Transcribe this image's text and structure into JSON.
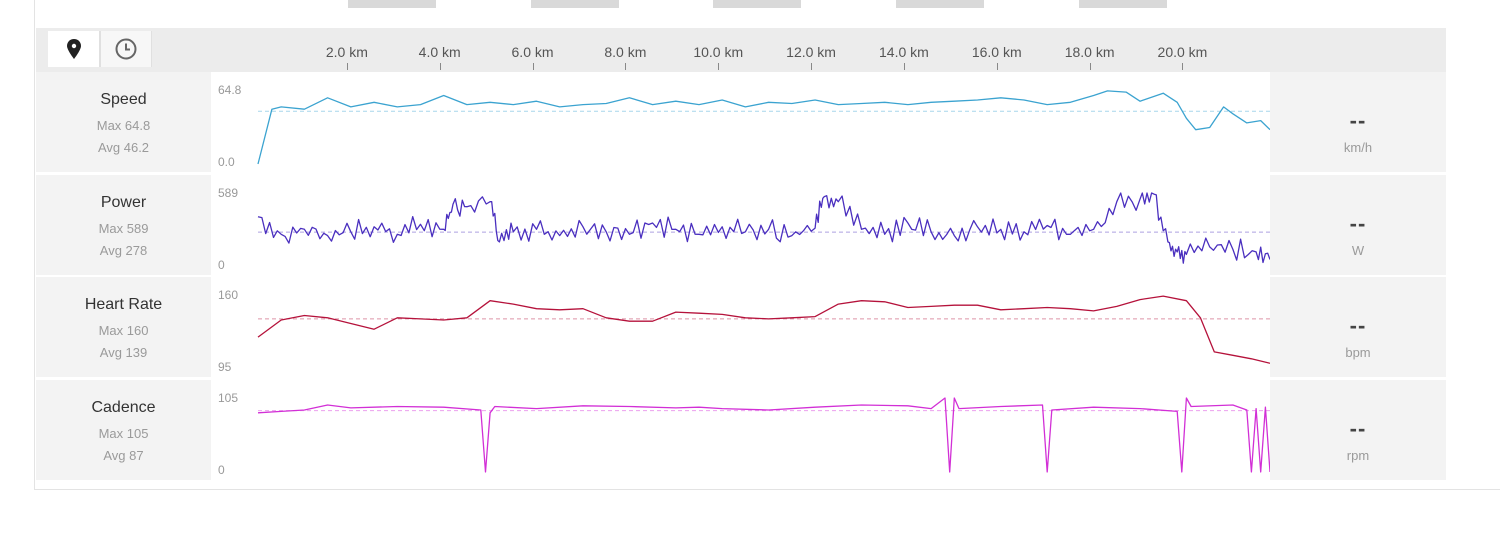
{
  "toolbar": {
    "map_icon": "map-pin-icon",
    "time_icon": "clock-icon"
  },
  "distance_axis": {
    "labels": [
      "2.0 km",
      "4.0 km",
      "6.0 km",
      "8.0 km",
      "10.0 km",
      "12.0 km",
      "14.0 km",
      "16.0 km",
      "18.0 km",
      "20.0 km"
    ]
  },
  "metrics": [
    {
      "name": "Speed",
      "max": "Max 64.8",
      "avg": "Avg 46.2",
      "current": "--",
      "unit": "km/h",
      "ymax_label": "64.8",
      "ymin_label": "0.0"
    },
    {
      "name": "Power",
      "max": "Max 589",
      "avg": "Avg 278",
      "current": "--",
      "unit": "W",
      "ymax_label": "589",
      "ymin_label": "0"
    },
    {
      "name": "Heart Rate",
      "max": "Max 160",
      "avg": "Avg 139",
      "current": "--",
      "unit": "bpm",
      "ymax_label": "160",
      "ymin_label": "95"
    },
    {
      "name": "Cadence",
      "max": "Max 105",
      "avg": "Avg 87",
      "current": "--",
      "unit": "rpm",
      "ymax_label": "105",
      "ymin_label": "0"
    }
  ],
  "chart_data": [
    {
      "type": "line",
      "title": "Speed",
      "color": "#3ba3d0",
      "xlabel": "km",
      "ylim": [
        0,
        64.8
      ],
      "average": 46.2,
      "x": [
        0.0,
        0.3,
        0.5,
        1.0,
        1.5,
        2.0,
        2.5,
        3.0,
        3.5,
        4.0,
        4.5,
        5.0,
        5.5,
        6.0,
        6.5,
        7.0,
        7.5,
        8.0,
        8.5,
        9.0,
        9.5,
        10.0,
        10.5,
        11.0,
        11.5,
        12.0,
        12.5,
        13.0,
        13.5,
        14.0,
        14.5,
        15.0,
        15.5,
        16.0,
        16.5,
        17.0,
        17.5,
        18.0,
        18.3,
        18.7,
        19.0,
        19.5,
        19.8,
        20.0,
        20.2,
        20.5,
        20.8,
        21.0,
        21.3,
        21.6,
        21.8
      ],
      "y": [
        0,
        48,
        50,
        48,
        58,
        50,
        54,
        50,
        52,
        60,
        52,
        54,
        52,
        55,
        50,
        52,
        53,
        58,
        52,
        55,
        52,
        56,
        50,
        54,
        53,
        56,
        52,
        53,
        54,
        52,
        54,
        55,
        56,
        58,
        56,
        52,
        54,
        60,
        64,
        63,
        55,
        62,
        54,
        40,
        30,
        32,
        50,
        44,
        36,
        38,
        30
      ]
    },
    {
      "type": "line",
      "title": "Power",
      "color": "#4a2fbf",
      "xlabel": "km",
      "ylim": [
        0,
        589
      ],
      "average": 278,
      "x": [
        0.0,
        0.5,
        1.0,
        1.5,
        2.0,
        2.5,
        3.0,
        3.5,
        4.0,
        4.2,
        4.5,
        5.0,
        5.2,
        5.5,
        6.0,
        6.5,
        7.0,
        7.5,
        8.0,
        8.5,
        9.0,
        9.5,
        10.0,
        10.5,
        11.0,
        11.5,
        12.0,
        12.2,
        12.5,
        13.0,
        13.5,
        14.0,
        14.5,
        15.0,
        15.5,
        16.0,
        16.5,
        17.0,
        17.5,
        18.0,
        18.5,
        19.0,
        19.3,
        19.6,
        19.8,
        20.0,
        20.5,
        21.0,
        21.5,
        21.8
      ],
      "y": [
        400,
        260,
        300,
        250,
        280,
        320,
        260,
        340,
        300,
        500,
        480,
        520,
        200,
        280,
        300,
        250,
        320,
        280,
        260,
        350,
        300,
        260,
        320,
        280,
        300,
        250,
        310,
        560,
        520,
        300,
        260,
        350,
        280,
        250,
        320,
        300,
        280,
        330,
        260,
        300,
        520,
        540,
        580,
        200,
        120,
        100,
        160,
        140,
        120,
        60
      ],
      "note": "noisy power trace"
    },
    {
      "type": "line",
      "title": "Heart Rate",
      "color": "#b5123b",
      "xlabel": "km",
      "ylim": [
        95,
        160
      ],
      "average": 139,
      "x": [
        0.0,
        0.5,
        1.0,
        1.5,
        2.0,
        2.5,
        3.0,
        3.5,
        4.0,
        4.5,
        5.0,
        5.5,
        6.0,
        6.5,
        7.0,
        7.5,
        8.0,
        8.5,
        9.0,
        9.5,
        10.0,
        10.5,
        11.0,
        11.5,
        12.0,
        12.5,
        13.0,
        13.5,
        14.0,
        14.5,
        15.0,
        15.5,
        16.0,
        16.5,
        17.0,
        17.5,
        18.0,
        18.5,
        19.0,
        19.5,
        20.0,
        20.3,
        20.6,
        21.0,
        21.4,
        21.8
      ],
      "y": [
        123,
        138,
        142,
        140,
        135,
        130,
        140,
        139,
        138,
        140,
        155,
        152,
        148,
        147,
        148,
        140,
        137,
        137,
        145,
        144,
        143,
        140,
        139,
        140,
        141,
        152,
        155,
        154,
        149,
        150,
        151,
        151,
        147,
        148,
        149,
        148,
        146,
        150,
        156,
        159,
        155,
        140,
        110,
        107,
        104,
        100
      ]
    },
    {
      "type": "line",
      "title": "Cadence",
      "color": "#d22fd6",
      "xlabel": "km",
      "ylim": [
        0,
        105
      ],
      "average": 87,
      "x": [
        0.0,
        0.5,
        1.0,
        1.5,
        2.0,
        3.0,
        4.0,
        4.8,
        4.9,
        5.0,
        5.1,
        6.0,
        7.0,
        8.0,
        9.0,
        9.5,
        10.0,
        11.0,
        12.0,
        13.0,
        14.0,
        14.5,
        14.8,
        14.9,
        15.0,
        15.1,
        16.0,
        16.9,
        17.0,
        17.1,
        18.0,
        19.0,
        19.8,
        19.9,
        20.0,
        20.1,
        21.0,
        21.3,
        21.4,
        21.5,
        21.6,
        21.7,
        21.8
      ],
      "y": [
        84,
        86,
        88,
        95,
        91,
        93,
        92,
        88,
        0,
        84,
        93,
        90,
        94,
        93,
        91,
        92,
        90,
        88,
        92,
        95,
        94,
        90,
        105,
        0,
        105,
        90,
        93,
        95,
        0,
        88,
        92,
        90,
        86,
        0,
        105,
        93,
        95,
        88,
        0,
        90,
        0,
        92,
        0
      ]
    }
  ]
}
